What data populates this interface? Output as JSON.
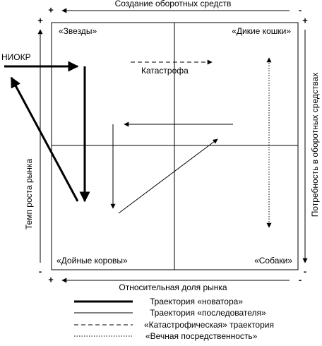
{
  "axes": {
    "top": {
      "label": "Создание оборотных средств",
      "start": "+",
      "end": "-"
    },
    "bottom": {
      "label": "Относительная доля рынка",
      "start": "+",
      "end": "-"
    },
    "left": {
      "label": "Темп роста рынка",
      "start": "+",
      "end": "-"
    },
    "right": {
      "label": "Потребность в оборотных средствах",
      "start": "+",
      "end": "-"
    }
  },
  "quadrants": [
    "«Звезды»",
    "«Дикие кошки»",
    "«Дойные коровы»",
    "«Собаки»"
  ],
  "annotations": {
    "rnd": "НИОКР",
    "catastrophe": "Катастрофа"
  },
  "legend": [
    "Траектория «новатора»",
    "Траектория «последователя»",
    "«Катастрофическая» траектория",
    "«Вечная посредственность»"
  ]
}
